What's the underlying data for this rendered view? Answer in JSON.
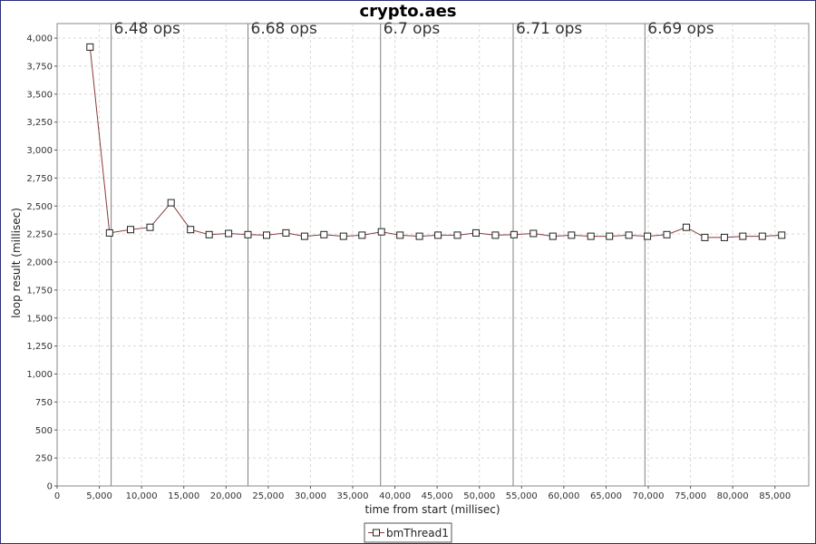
{
  "chart_data": {
    "type": "line",
    "title": "crypto.aes",
    "xlabel": "time from start (millisec)",
    "ylabel": "loop result (millisec)",
    "xlim": [
      0,
      89000
    ],
    "ylim": [
      0,
      4130
    ],
    "x_ticks": [
      0,
      5000,
      10000,
      15000,
      20000,
      25000,
      30000,
      35000,
      40000,
      45000,
      50000,
      55000,
      60000,
      65000,
      70000,
      75000,
      80000,
      85000
    ],
    "x_tick_labels": [
      "0",
      "5,000",
      "10,000",
      "15,000",
      "20,000",
      "25,000",
      "30,000",
      "35,000",
      "40,000",
      "45,000",
      "50,000",
      "55,000",
      "60,000",
      "65,000",
      "70,000",
      "75,000",
      "80,000",
      "85,000"
    ],
    "y_ticks": [
      0,
      250,
      500,
      750,
      1000,
      1250,
      1500,
      1750,
      2000,
      2250,
      2500,
      2750,
      3000,
      3250,
      3500,
      3750,
      4000
    ],
    "y_tick_labels": [
      "0",
      "250",
      "500",
      "750",
      "1,000",
      "1,250",
      "1,500",
      "1,750",
      "2,000",
      "2,250",
      "2,500",
      "2,750",
      "3,000",
      "3,250",
      "3,500",
      "3,750",
      "4,000"
    ],
    "grid": true,
    "legend_placement": "bottom-center",
    "series": [
      {
        "name": "bmThread1",
        "color": "#8b3a3a",
        "x": [
          3900,
          6200,
          8700,
          11000,
          13500,
          15800,
          18000,
          20300,
          22600,
          24800,
          27100,
          29300,
          31600,
          33900,
          36100,
          38400,
          40600,
          42900,
          45100,
          47400,
          49600,
          51900,
          54100,
          56400,
          58700,
          60900,
          63200,
          65400,
          67700,
          69900,
          72200,
          74500,
          76700,
          79000,
          81200,
          83500,
          85800
        ],
        "values": [
          3920,
          2260,
          2290,
          2310,
          2530,
          2290,
          2245,
          2255,
          2245,
          2240,
          2260,
          2230,
          2245,
          2230,
          2240,
          2270,
          2240,
          2230,
          2240,
          2240,
          2260,
          2240,
          2245,
          2255,
          2230,
          2240,
          2230,
          2230,
          2240,
          2230,
          2245,
          2310,
          2220,
          2220,
          2230,
          2230,
          2240
        ]
      }
    ],
    "annotations": [
      {
        "x": 6400,
        "label": "6.48 ops"
      },
      {
        "x": 22600,
        "label": "6.68 ops"
      },
      {
        "x": 38300,
        "label": "6.7 ops"
      },
      {
        "x": 54000,
        "label": "6.71 ops"
      },
      {
        "x": 69600,
        "label": "6.69 ops"
      }
    ]
  },
  "colors": {
    "border": "#2a2f78",
    "grid": "#d9d9d9",
    "annotation_line": "#808080",
    "series": "#8b3a3a"
  }
}
